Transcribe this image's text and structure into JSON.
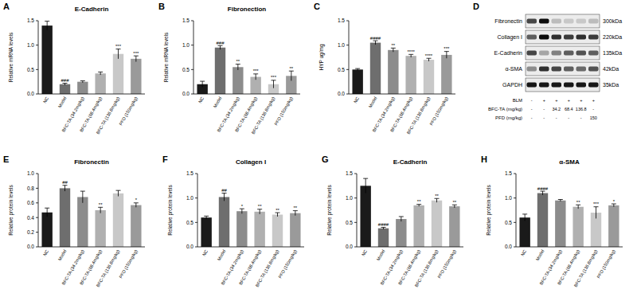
{
  "chart_data": [
    {
      "type": "bar",
      "panel": "A",
      "title": "E-Cadherin",
      "y_label": "Relative mRNA levels",
      "categories": [
        "NC",
        "Model",
        "BFC-TA (34.2mg/kg)",
        "BFC-TA (68.4mg/kg)",
        "BFC-TA (136.8mg/kg)",
        "PFD (150mg/kg)"
      ],
      "values": [
        1.4,
        0.2,
        0.25,
        0.42,
        0.82,
        0.72
      ],
      "errors": [
        0.09,
        0.02,
        0.02,
        0.03,
        0.1,
        0.06
      ],
      "significance": [
        null,
        "###",
        null,
        null,
        "***",
        "***"
      ],
      "colors": [
        "#1a1a1a",
        "#6e6e6e",
        "#8c8c8c",
        "#b0b0b0",
        "#c8c8c8",
        "#9a9a9a"
      ],
      "ylim": [
        0,
        1.5
      ],
      "yticks": [
        {
          "value": 0,
          "label": "0.0"
        },
        {
          "value": 0.5,
          "label": "0.5"
        },
        {
          "value": 1,
          "label": "1.0"
        },
        {
          "value": 1.5,
          "label": "1.5"
        }
      ]
    },
    {
      "type": "bar",
      "panel": "B",
      "title": "Fibronection",
      "y_label": "Relative mRNA levels",
      "categories": [
        "NC",
        "Model",
        "BFC-TA (34.2mg/kg)",
        "BFC-TA (68.4mg/kg)",
        "BFC-TA (136.8mg/kg)",
        "PFD (150mg/kg)"
      ],
      "values": [
        0.2,
        0.95,
        0.55,
        0.35,
        0.2,
        0.37
      ],
      "errors": [
        0.06,
        0.04,
        0.06,
        0.06,
        0.08,
        0.1
      ],
      "significance": [
        null,
        "###",
        "**",
        "***",
        "***",
        "**"
      ],
      "colors": [
        "#1a1a1a",
        "#6e6e6e",
        "#8c8c8c",
        "#b0b0b0",
        "#c8c8c8",
        "#9a9a9a"
      ],
      "ylim": [
        0,
        1.5
      ],
      "yticks": [
        {
          "value": 0,
          "label": "0.0"
        },
        {
          "value": 0.5,
          "label": "0.5"
        },
        {
          "value": 1,
          "label": "1.0"
        },
        {
          "value": 1.5,
          "label": "1.5"
        }
      ]
    },
    {
      "type": "bar",
      "panel": "C",
      "y_label": "HYP ug/mg",
      "categories": [
        "NC",
        "Model",
        "BFC-TA (34.2mg/kg)",
        "BFC-TA (68.4mg/kg)",
        "BFC-TA (136.8mg/kg)",
        "PFD (150mg/kg)"
      ],
      "values": [
        0.5,
        1.05,
        0.9,
        0.78,
        0.7,
        0.8
      ],
      "errors": [
        0.02,
        0.04,
        0.04,
        0.03,
        0.03,
        0.07
      ],
      "significance": [
        null,
        "####",
        "**",
        "****",
        "****",
        "***"
      ],
      "colors": [
        "#1a1a1a",
        "#6e6e6e",
        "#8c8c8c",
        "#b0b0b0",
        "#c8c8c8",
        "#9a9a9a"
      ],
      "ylim": [
        0,
        1.5
      ],
      "yticks": [
        {
          "value": 0,
          "label": "0.0"
        },
        {
          "value": 0.5,
          "label": "0.5"
        },
        {
          "value": 1,
          "label": "1.0"
        },
        {
          "value": 1.5,
          "label": "1.5"
        }
      ]
    },
    {
      "type": "bar",
      "panel": "E",
      "title": "Fibronectin",
      "y_label": "Relative protein levels",
      "categories": [
        "NC",
        "Model",
        "BFC-TA (34.2mg/kg)",
        "BFC-TA (68.4mg/kg)",
        "BFC-TA (136.8mg/kg)",
        "PFD (150mg/kg)"
      ],
      "values": [
        0.47,
        0.8,
        0.68,
        0.5,
        0.73,
        0.57
      ],
      "errors": [
        0.06,
        0.04,
        0.08,
        0.04,
        0.04,
        0.03
      ],
      "significance": [
        null,
        "##",
        null,
        "**",
        null,
        "*"
      ],
      "colors": [
        "#1a1a1a",
        "#6e6e6e",
        "#8c8c8c",
        "#b0b0b0",
        "#c8c8c8",
        "#9a9a9a"
      ],
      "ylim": [
        0,
        1
      ],
      "yticks": [
        {
          "value": 0,
          "label": "0.0"
        },
        {
          "value": 0.2,
          "label": "0.2"
        },
        {
          "value": 0.4,
          "label": "0.4"
        },
        {
          "value": 0.6,
          "label": "0.6"
        },
        {
          "value": 0.8,
          "label": "0.8"
        },
        {
          "value": 1,
          "label": "1.0"
        }
      ]
    },
    {
      "type": "bar",
      "panel": "F",
      "title": "Collagen I",
      "y_label": "Relative protein levels",
      "categories": [
        "NC",
        "Model",
        "BFC-TA (34.2mg/kg)",
        "BFC-TA (68.4mg/kg)",
        "BFC-TA (136.8mg/kg)",
        "PFD (150mg/kg)"
      ],
      "values": [
        0.6,
        1.02,
        0.73,
        0.72,
        0.66,
        0.69
      ],
      "errors": [
        0.03,
        0.08,
        0.05,
        0.05,
        0.04,
        0.05
      ],
      "significance": [
        null,
        "##",
        "*",
        "**",
        "**",
        "**"
      ],
      "colors": [
        "#1a1a1a",
        "#6e6e6e",
        "#8c8c8c",
        "#b0b0b0",
        "#c8c8c8",
        "#9a9a9a"
      ],
      "ylim": [
        0,
        1.5
      ],
      "yticks": [
        {
          "value": 0,
          "label": "0.0"
        },
        {
          "value": 0.5,
          "label": "0.5"
        },
        {
          "value": 1,
          "label": "1.0"
        },
        {
          "value": 1.5,
          "label": "1.5"
        }
      ]
    },
    {
      "type": "bar",
      "panel": "G",
      "title": "E-Cadherin",
      "y_label": "Relative protein levels",
      "categories": [
        "NC",
        "Model",
        "BFC-TA (34.2mg/kg)",
        "BFC-TA (68.4mg/kg)",
        "BFC-TA (136.8mg/kg)",
        "PFD (150mg/kg)"
      ],
      "values": [
        1.25,
        0.38,
        0.57,
        0.85,
        0.95,
        0.83
      ],
      "errors": [
        0.15,
        0.02,
        0.05,
        0.02,
        0.04,
        0.03
      ],
      "significance": [
        null,
        "####",
        null,
        "**",
        "**",
        "**"
      ],
      "colors": [
        "#1a1a1a",
        "#6e6e6e",
        "#8c8c8c",
        "#b0b0b0",
        "#c8c8c8",
        "#9a9a9a"
      ],
      "ylim": [
        0,
        1.5
      ],
      "yticks": [
        {
          "value": 0,
          "label": "0.0"
        },
        {
          "value": 0.5,
          "label": "0.5"
        },
        {
          "value": 1,
          "label": "1.0"
        },
        {
          "value": 1.5,
          "label": "1.5"
        }
      ]
    },
    {
      "type": "bar",
      "panel": "H",
      "title": "α-SMA",
      "y_label": "Relative protein levels",
      "categories": [
        "NC",
        "Model",
        "BFC-TA (34.2mg/kg)",
        "BFC-TA (68.4mg/kg)",
        "BFC-TA (136.8mg/kg)",
        "PFD (150mg/kg)"
      ],
      "values": [
        0.6,
        1.1,
        0.95,
        0.82,
        0.7,
        0.85
      ],
      "errors": [
        0.07,
        0.04,
        0.02,
        0.04,
        0.12,
        0.03
      ],
      "significance": [
        null,
        "####",
        null,
        "**",
        "***",
        "*"
      ],
      "colors": [
        "#1a1a1a",
        "#6e6e6e",
        "#8c8c8c",
        "#b0b0b0",
        "#c8c8c8",
        "#9a9a9a"
      ],
      "ylim": [
        0,
        1.5
      ],
      "yticks": [
        {
          "value": 0,
          "label": "0.0"
        },
        {
          "value": 0.5,
          "label": "0.5"
        },
        {
          "value": 1,
          "label": "1.0"
        },
        {
          "value": 1.5,
          "label": "1.5"
        }
      ]
    }
  ],
  "blot": {
    "panel": "D",
    "rows": [
      {
        "label": "Fibronectin",
        "size": "300kDa",
        "intensities": [
          0.7,
          0.95,
          0.2,
          0.15,
          0.15,
          0.2
        ]
      },
      {
        "label": "Collagen I",
        "size": "220kDa",
        "intensities": [
          0.6,
          0.95,
          0.8,
          0.75,
          0.8,
          0.75
        ]
      },
      {
        "label": "E-Cadherin",
        "size": "135kDa",
        "intensities": [
          0.7,
          0.3,
          0.45,
          0.6,
          0.65,
          0.6
        ]
      },
      {
        "label": "α-SMA",
        "size": "42kDa",
        "intensities": [
          0.4,
          0.8,
          0.7,
          0.6,
          0.55,
          0.65
        ]
      },
      {
        "label": "GAPDH",
        "size": "35kDa",
        "intensities": [
          0.9,
          0.9,
          0.9,
          0.9,
          0.9,
          0.9
        ]
      }
    ],
    "conditions": [
      {
        "label": "BLM",
        "lanes": [
          "-",
          "+",
          "+",
          "+",
          "+",
          "+"
        ]
      },
      {
        "label": "BFC-TA  (mg/kg)",
        "lanes": [
          "-",
          "-",
          "34.2",
          "68.4",
          "136.8",
          "-"
        ]
      },
      {
        "label": "PFD  (mg/kg)",
        "lanes": [
          "-",
          "-",
          "-",
          "-",
          "-",
          "150"
        ]
      }
    ]
  }
}
